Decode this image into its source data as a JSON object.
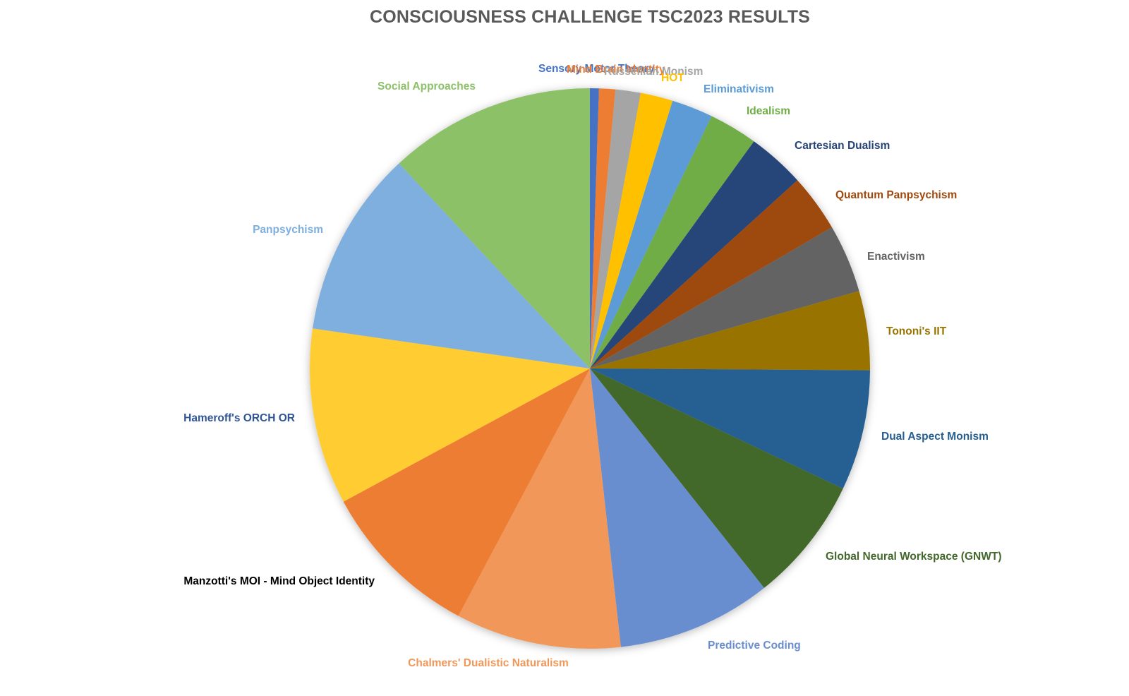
{
  "chart_data": {
    "type": "pie",
    "title": "CONSCIOUSNESS CHALLENGE TSC2023 RESULTS",
    "unit": "share (%)",
    "slices": [
      {
        "label": "Sensory Motor Theory",
        "value": 0.5,
        "color": "#4472C4"
      },
      {
        "label": "Mind Brain Identity",
        "value": 0.9,
        "color": "#ED7D31"
      },
      {
        "label": "Russellian Monism",
        "value": 1.4,
        "color": "#A5A5A5"
      },
      {
        "label": "HOT",
        "value": 1.8,
        "color": "#FFC000"
      },
      {
        "label": "Eliminativism",
        "value": 2.3,
        "color": "#5B9BD5"
      },
      {
        "label": "Idealism",
        "value": 2.7,
        "color": "#70AD47"
      },
      {
        "label": "Cartesian Dualism",
        "value": 3.2,
        "color": "#264478"
      },
      {
        "label": "Quantum Panpsychism",
        "value": 3.2,
        "color": "#9E480E"
      },
      {
        "label": "Enactivism",
        "value": 3.8,
        "color": "#636363"
      },
      {
        "label": "Tononi's IIT",
        "value": 4.4,
        "color": "#997300"
      },
      {
        "label": "Dual Aspect Monism",
        "value": 6.7,
        "color": "#255E91"
      },
      {
        "label": "Global Neural Workspace (GNWT)",
        "value": 7.0,
        "color": "#43682B"
      },
      {
        "label": "Predictive Coding",
        "value": 8.6,
        "color": "#698ED0"
      },
      {
        "label": "Chalmers' Dualistic Naturalism",
        "value": 9.2,
        "color": "#F1975A"
      },
      {
        "label": "Manzotti's MOI - Mind Object Identity",
        "value": 9.0,
        "color": "#ED7D31",
        "label_color": "#000000"
      },
      {
        "label": "Hameroff's ORCH OR",
        "value": 9.8,
        "color": "#FFCD33",
        "label_color": "#2F5597"
      },
      {
        "label": "Panpsychism",
        "value": 10.4,
        "color": "#7FAFDE"
      },
      {
        "label": "Social Approaches",
        "value": 11.5,
        "color": "#8CC168"
      }
    ]
  }
}
